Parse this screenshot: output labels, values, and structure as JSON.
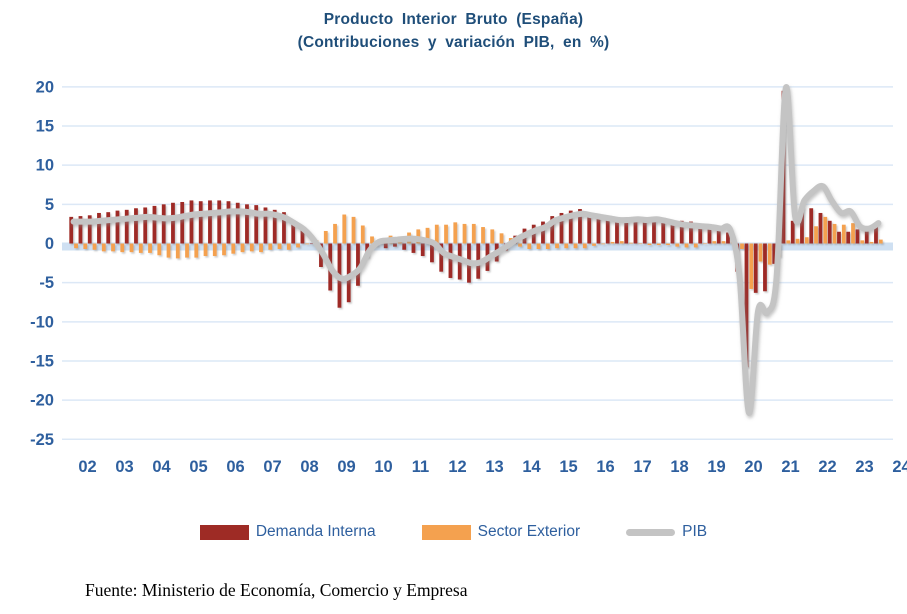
{
  "title": {
    "line1": "Producto Interior Bruto (España)",
    "line2": "(Contribuciones y variación PIB, en %)"
  },
  "legend": {
    "demanda_interna": "Demanda Interna",
    "sector_exterior": "Sector Exterior",
    "pib": "PIB"
  },
  "footer": {
    "source": "Fuente: Ministerio de Economía, Comercio y Empresa"
  },
  "colors": {
    "demanda_interna": "#9E2B25",
    "sector_exterior": "#F4A14F",
    "pib_line": "#C4C4C4",
    "title_blue": "#1F4E79",
    "axis_blue": "#2E5F9E",
    "gridline": "#DCE8F6",
    "zero_band": "#CFE0F2"
  },
  "chart_data": {
    "type": "bar",
    "subtype": "clustered quarterly bars with smooth line overlay",
    "frequency": "quarterly",
    "x_start": "2002Q1",
    "x_end": "2023Q4",
    "x_tick_labels": [
      "02",
      "03",
      "04",
      "05",
      "06",
      "07",
      "08",
      "09",
      "10",
      "11",
      "12",
      "13",
      "14",
      "15",
      "16",
      "17",
      "18",
      "19",
      "20",
      "21",
      "22",
      "23",
      "24"
    ],
    "y_ticks": [
      20,
      15,
      10,
      5,
      0,
      -5,
      -10,
      -15,
      -20,
      -25
    ],
    "ylim": [
      -25,
      21
    ],
    "grid": true,
    "legend_position": "bottom",
    "series": [
      {
        "name": "Demanda Interna",
        "kind": "bar",
        "color": "#9E2B25",
        "values": [
          3.4,
          3.5,
          3.6,
          3.9,
          4.0,
          4.2,
          4.3,
          4.5,
          4.6,
          4.8,
          5.0,
          5.2,
          5.3,
          5.5,
          5.4,
          5.5,
          5.5,
          5.4,
          5.2,
          5.0,
          4.9,
          4.6,
          4.3,
          4.0,
          3.0,
          1.8,
          0.0,
          -3.0,
          -6.0,
          -8.2,
          -7.5,
          -5.4,
          -1.8,
          -0.3,
          -0.6,
          -0.4,
          -0.8,
          -1.2,
          -1.6,
          -2.4,
          -3.6,
          -4.4,
          -4.6,
          -5.0,
          -4.5,
          -3.5,
          -2.3,
          -0.9,
          1.0,
          1.9,
          2.4,
          2.8,
          3.5,
          3.9,
          4.2,
          4.4,
          3.9,
          3.5,
          3.0,
          2.7,
          2.9,
          3.1,
          3.2,
          3.3,
          3.1,
          3.0,
          2.9,
          2.8,
          2.2,
          1.8,
          1.6,
          1.4,
          -3.6,
          -15.8,
          -6.3,
          -6.1,
          -2.6,
          19.5,
          2.9,
          4.7,
          4.5,
          3.9,
          2.9,
          1.5,
          1.5,
          1.8,
          1.7,
          2.1
        ]
      },
      {
        "name": "Sector Exterior",
        "kind": "bar",
        "color": "#F4A14F",
        "values": [
          -0.6,
          -0.7,
          -0.8,
          -1.0,
          -1.0,
          -1.1,
          -1.1,
          -1.2,
          -1.2,
          -1.5,
          -1.8,
          -1.9,
          -1.8,
          -1.8,
          -1.6,
          -1.6,
          -1.5,
          -1.3,
          -1.1,
          -1.0,
          -1.1,
          -0.8,
          -0.7,
          -0.8,
          -0.5,
          -0.1,
          0.4,
          1.6,
          2.5,
          3.7,
          3.4,
          2.3,
          0.9,
          0.5,
          1.0,
          0.9,
          1.4,
          1.8,
          2.0,
          2.4,
          2.4,
          2.7,
          2.5,
          2.5,
          2.1,
          1.8,
          1.3,
          0.7,
          -0.4,
          -0.7,
          -0.7,
          -0.7,
          -0.6,
          -0.6,
          -0.6,
          -0.6,
          -0.3,
          -0.1,
          0.2,
          0.3,
          0.1,
          0.0,
          -0.2,
          -0.2,
          -0.2,
          -0.4,
          -0.5,
          -0.5,
          0.0,
          0.3,
          0.3,
          0.3,
          -0.7,
          -5.8,
          -2.3,
          -2.7,
          -1.7,
          0.4,
          0.6,
          0.8,
          2.2,
          3.4,
          2.5,
          2.4,
          2.6,
          0.4,
          0.2,
          0.5
        ]
      },
      {
        "name": "PIB",
        "kind": "line",
        "color": "#C4C4C4",
        "values": [
          2.8,
          2.8,
          2.8,
          2.9,
          3.0,
          3.1,
          3.2,
          3.3,
          3.4,
          3.3,
          3.2,
          3.3,
          3.5,
          3.7,
          3.8,
          3.9,
          4.0,
          4.1,
          4.1,
          4.0,
          3.8,
          3.8,
          3.6,
          3.2,
          2.5,
          1.7,
          0.4,
          -1.4,
          -3.5,
          -4.5,
          -4.1,
          -3.1,
          -0.9,
          0.2,
          0.4,
          0.5,
          0.6,
          0.6,
          0.4,
          0.0,
          -1.2,
          -1.7,
          -2.1,
          -2.5,
          -2.4,
          -1.7,
          -1.0,
          -0.2,
          0.6,
          1.2,
          1.7,
          2.1,
          2.9,
          3.3,
          3.6,
          3.8,
          3.6,
          3.4,
          3.2,
          3.0,
          3.0,
          3.1,
          3.0,
          3.1,
          2.9,
          2.6,
          2.4,
          2.3,
          2.2,
          2.1,
          1.9,
          1.7,
          -4.3,
          -21.6,
          -8.6,
          -8.8,
          -4.3,
          19.9,
          3.5,
          5.5,
          6.7,
          7.3,
          5.4,
          3.9,
          4.1,
          2.2,
          1.9,
          2.6
        ]
      }
    ]
  }
}
